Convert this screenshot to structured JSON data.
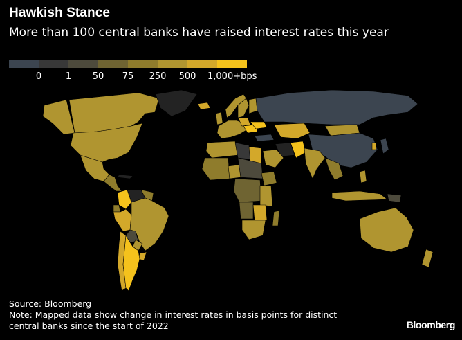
{
  "title": "Hawkish Stance",
  "subtitle": "More than 100 central banks have raised interest rates this year",
  "legend": {
    "swatch_colors": [
      "#3c4550",
      "#383838",
      "#4d4a3c",
      "#6f6432",
      "#8f7c2c",
      "#b09530",
      "#d3a82a",
      "#f5c21c"
    ],
    "labels": [
      "0",
      "1",
      "50",
      "75",
      "250",
      "500",
      "1,000+bps"
    ]
  },
  "map": {
    "colors": {
      "no_data": "#232323",
      "cut": "#3c4550",
      "zero": "#383838",
      "b1": "#4d4a3c",
      "b50": "#6f6432",
      "b75": "#8f7c2c",
      "b250": "#b09530",
      "b500": "#d3a82a",
      "b1000": "#f5c21c"
    }
  },
  "footer": {
    "source": "Source: Bloomberg",
    "note_line1": "Note: Mapped data show change in interest rates in basis points for distinct",
    "note_line2": "central banks since the start of 2022"
  },
  "brand": "Bloomberg"
}
